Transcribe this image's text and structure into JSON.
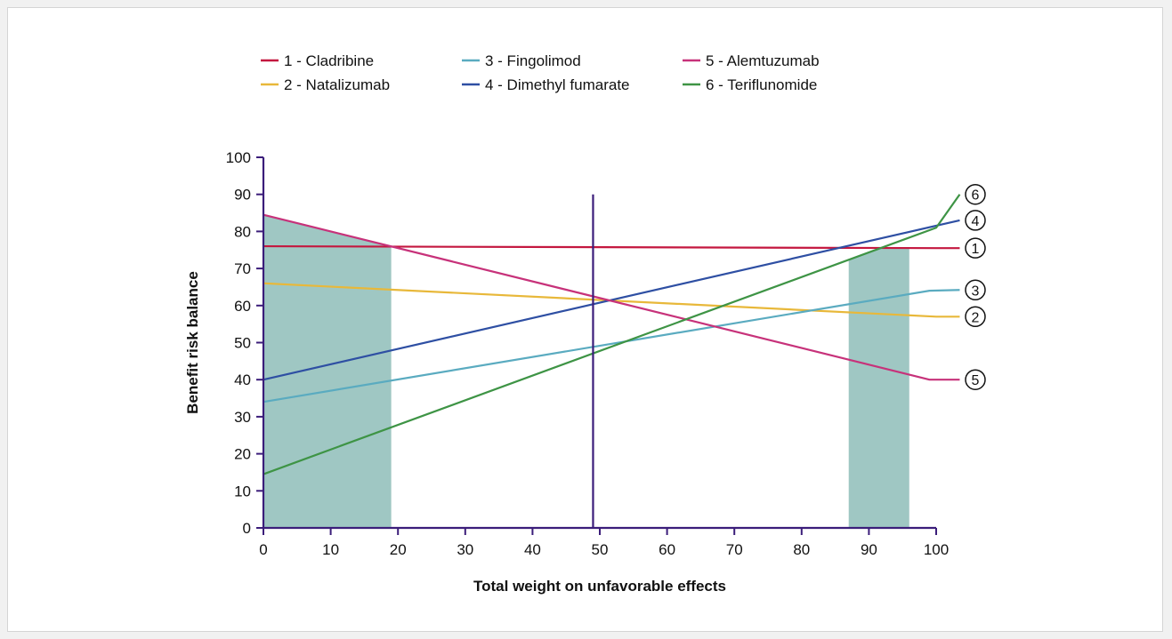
{
  "chart_data": {
    "type": "line",
    "xlabel": "Total weight on unfavorable effects",
    "ylabel": "Benefit risk balance",
    "xlim": [
      0,
      100
    ],
    "ylim": [
      0,
      100
    ],
    "x_ticks": [
      "0",
      "10",
      "20",
      "30",
      "40",
      "50",
      "60",
      "70",
      "80",
      "90",
      "100"
    ],
    "y_ticks": [
      "0",
      "10",
      "20",
      "30",
      "40",
      "50",
      "60",
      "70",
      "80",
      "90",
      "100"
    ],
    "grid": false,
    "legend_position": "top",
    "reference_line": {
      "x": 49,
      "y_top": 90,
      "color": "#3b1d7a"
    },
    "shaded_regions": [
      {
        "x_range": [
          0,
          19
        ],
        "color": "#9fc7c3"
      },
      {
        "x_range": [
          87,
          96
        ],
        "color": "#9fc7c3"
      }
    ],
    "series": [
      {
        "name": "1 - Cladribine",
        "marker": "1",
        "color": "#c4173f",
        "points": [
          [
            0,
            76
          ],
          [
            100,
            75.5
          ],
          [
            103.5,
            75.5
          ]
        ]
      },
      {
        "name": "2 - Natalizumab",
        "marker": "2",
        "color": "#e8b83a",
        "points": [
          [
            0,
            66
          ],
          [
            100,
            57
          ],
          [
            103.5,
            57
          ]
        ]
      },
      {
        "name": "3 - Fingolimod",
        "marker": "3",
        "color": "#5aabc0",
        "points": [
          [
            0,
            34
          ],
          [
            99,
            64
          ],
          [
            103.5,
            64.2
          ]
        ]
      },
      {
        "name": "4 - Dimethyl fumarate",
        "marker": "4",
        "color": "#2e4fa3",
        "points": [
          [
            0,
            40
          ],
          [
            103.5,
            83
          ]
        ]
      },
      {
        "name": "5 - Alemtuzumab",
        "marker": "5",
        "color": "#c7327a",
        "points": [
          [
            0,
            84.5
          ],
          [
            99,
            40
          ],
          [
            103.5,
            40
          ]
        ]
      },
      {
        "name": "6 - Teriflunomide",
        "marker": "6",
        "color": "#3e9445",
        "points": [
          [
            0,
            14.5
          ],
          [
            100,
            81
          ],
          [
            103.5,
            90
          ]
        ]
      }
    ],
    "marker_positions": [
      {
        "marker": "6",
        "y": 90
      },
      {
        "marker": "4",
        "y": 83
      },
      {
        "marker": "1",
        "y": 75.5
      },
      {
        "marker": "3",
        "y": 64.2
      },
      {
        "marker": "2",
        "y": 57
      },
      {
        "marker": "5",
        "y": 40
      }
    ],
    "axis_color": "#3b1d7a"
  }
}
